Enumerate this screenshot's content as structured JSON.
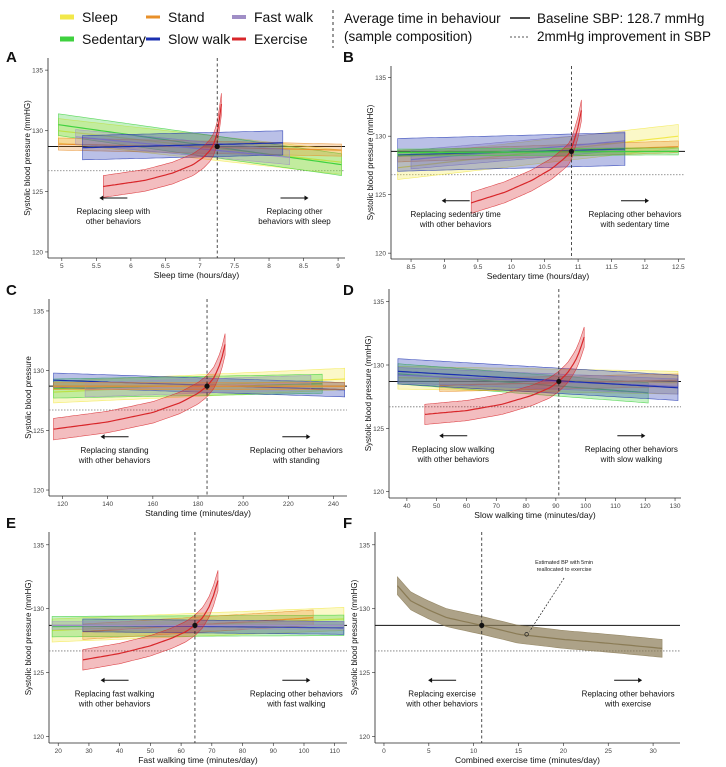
{
  "legend": {
    "behaviours": [
      {
        "label": "Sleep",
        "color": "#f2e84a"
      },
      {
        "label": "Stand",
        "color": "#e8902a"
      },
      {
        "label": "Fast walk",
        "color": "#a08ec6"
      },
      {
        "label": "Sedentary",
        "color": "#3fd13f"
      },
      {
        "label": "Slow walk",
        "color": "#1a2fb0"
      },
      {
        "label": "Exercise",
        "color": "#d8262a"
      }
    ],
    "avg_line_label_1": "Average time in behaviour",
    "avg_line_label_2": "(sample composition)",
    "baseline_label": "Baseline SBP: 128.7 mmHg",
    "improvement_label": "2mmHg improvement in SBP"
  },
  "colors": {
    "sleep": "#f2e84a",
    "stand": "#e8902a",
    "fastwalk": "#a08ec6",
    "sedentary": "#3fd13f",
    "slowwalk": "#1a2fb0",
    "exercise": "#d8262a",
    "combined": "#8a7b55"
  },
  "chart_data": [
    {
      "id": "A",
      "type": "line",
      "ylabel": "Systolic blood pressure (mmHG)",
      "xlabel": "Sleep time (hours/day)",
      "xlim": [
        4.8,
        9.1
      ],
      "ylim": [
        119.5,
        136
      ],
      "xticks": [
        5,
        5.5,
        6,
        6.5,
        7,
        7.5,
        8,
        8.5,
        9
      ],
      "yticks": [
        120,
        125,
        130,
        135
      ],
      "avg_x": 7.25,
      "baseline": 128.7,
      "improved": 126.7,
      "left_note": "Replacing sleep with|other behaviors",
      "right_note": "Replacing other|behaviors with sleep",
      "series": [
        {
          "name": "Sleep",
          "key": "sleep",
          "x": [
            4.95,
            9.05
          ],
          "y": [
            130.0,
            127.4
          ],
          "band": 1.0
        },
        {
          "name": "Sedentary",
          "key": "sedentary",
          "x": [
            4.95,
            9.05
          ],
          "y": [
            130.5,
            127.2
          ],
          "band": 0.9
        },
        {
          "name": "Stand",
          "key": "stand",
          "x": [
            4.95,
            9.05
          ],
          "y": [
            128.9,
            128.4
          ],
          "band": 0.5
        },
        {
          "name": "Fast walk",
          "key": "fastwalk",
          "x": [
            5.2,
            8.3
          ],
          "y": [
            129.5,
            127.8
          ],
          "band": 0.6
        },
        {
          "name": "Slow walk",
          "key": "slowwalk",
          "x": [
            5.3,
            8.2
          ],
          "y": [
            128.6,
            129.0
          ],
          "band": 1.0
        },
        {
          "name": "Exercise",
          "key": "exercise",
          "x": [
            5.6,
            6.2,
            6.6,
            6.9,
            7.05,
            7.15,
            7.2,
            7.25,
            7.28,
            7.31
          ],
          "y": [
            125.4,
            125.9,
            126.5,
            127.2,
            127.8,
            128.4,
            128.9,
            129.8,
            130.9,
            132.2
          ],
          "band": 0.9
        }
      ]
    },
    {
      "id": "B",
      "type": "line",
      "ylabel": "Systolic blood pressure (mmHG)",
      "xlabel": "Sedentary time (hours/day)",
      "xlim": [
        8.2,
        12.6
      ],
      "ylim": [
        119.5,
        136
      ],
      "xticks": [
        8.5,
        9,
        9.5,
        10,
        10.5,
        11,
        11.5,
        12,
        12.5
      ],
      "yticks": [
        120,
        125,
        130,
        135
      ],
      "avg_x": 10.9,
      "baseline": 128.7,
      "improved": 126.7,
      "left_note": "Replacing sedentary time|with other behaviors",
      "right_note": "Replacing other behaviors|with sedentary time",
      "series": [
        {
          "name": "Sleep",
          "key": "sleep",
          "x": [
            8.3,
            12.5
          ],
          "y": [
            127.3,
            130.0
          ],
          "band": 1.0
        },
        {
          "name": "Stand",
          "key": "stand",
          "x": [
            8.3,
            12.5
          ],
          "y": [
            128.3,
            129.1
          ],
          "band": 0.5
        },
        {
          "name": "Fast walk",
          "key": "fastwalk",
          "x": [
            8.5,
            11.7
          ],
          "y": [
            128.0,
            129.6
          ],
          "band": 0.8
        },
        {
          "name": "Slow walk",
          "key": "slowwalk",
          "x": [
            8.3,
            11.7
          ],
          "y": [
            128.4,
            128.9
          ],
          "band": 1.4
        },
        {
          "name": "Sedentary",
          "key": "sedentary",
          "x": [
            8.3,
            12.5
          ],
          "y": [
            128.6,
            128.7
          ],
          "band": 0.3
        },
        {
          "name": "Exercise",
          "key": "exercise",
          "x": [
            9.4,
            9.9,
            10.3,
            10.6,
            10.75,
            10.85,
            10.9,
            10.95,
            11.0,
            11.05
          ],
          "y": [
            124.3,
            125.2,
            126.2,
            127.2,
            127.9,
            128.4,
            128.9,
            129.8,
            130.8,
            132.2
          ],
          "band": 0.9
        }
      ]
    },
    {
      "id": "C",
      "type": "line",
      "ylabel": "Systolic blood pressure",
      "xlabel": "Standing time (minutes/day)",
      "xlim": [
        114,
        246
      ],
      "ylim": [
        119.5,
        136
      ],
      "xticks": [
        120,
        140,
        160,
        180,
        200,
        220,
        240
      ],
      "yticks": [
        120,
        125,
        130,
        135
      ],
      "avg_x": 184,
      "baseline": 128.7,
      "improved": 126.7,
      "left_note": "Replacing standing|with other behaviors",
      "right_note": "Replacing other behaviors|with standing",
      "series": [
        {
          "name": "Sleep",
          "key": "sleep",
          "x": [
            116,
            245
          ],
          "y": [
            128.2,
            129.3
          ],
          "band": 0.9
        },
        {
          "name": "Sedentary",
          "key": "sedentary",
          "x": [
            116,
            235
          ],
          "y": [
            128.5,
            128.9
          ],
          "band": 0.8
        },
        {
          "name": "Slow walk",
          "key": "slowwalk",
          "x": [
            116,
            245
          ],
          "y": [
            129.2,
            128.4
          ],
          "band": 0.6
        },
        {
          "name": "Fast walk",
          "key": "fastwalk",
          "x": [
            130,
            230
          ],
          "y": [
            128.4,
            129.0
          ],
          "band": 0.6
        },
        {
          "name": "Stand",
          "key": "stand",
          "x": [
            116,
            245
          ],
          "y": [
            128.7,
            128.7
          ],
          "band": 0.3
        },
        {
          "name": "Exercise",
          "key": "exercise",
          "x": [
            116,
            140,
            160,
            172,
            180,
            184,
            187,
            189,
            190.5,
            192
          ],
          "y": [
            125.1,
            125.7,
            126.5,
            127.3,
            128.1,
            128.7,
            129.4,
            130.2,
            131.0,
            132.2
          ],
          "band": 0.9
        }
      ]
    },
    {
      "id": "D",
      "type": "line",
      "ylabel": "Systolic blood pressure (mmHG)",
      "xlabel": "Slow walking time (minutes/day)",
      "xlim": [
        34,
        132
      ],
      "ylim": [
        119.5,
        136
      ],
      "xticks": [
        40,
        50,
        60,
        70,
        80,
        90,
        100,
        110,
        120,
        130
      ],
      "yticks": [
        120,
        125,
        130,
        135
      ],
      "avg_x": 91,
      "baseline": 128.7,
      "improved": 126.7,
      "left_note": "Replacing slow walking|with other behaviors",
      "right_note": "Replacing other behaviors|with slow walking",
      "series": [
        {
          "name": "Sleep",
          "key": "sleep",
          "x": [
            37,
            131
          ],
          "y": [
            129.0,
            128.6
          ],
          "band": 0.9
        },
        {
          "name": "Sedentary",
          "key": "sedentary",
          "x": [
            37,
            121
          ],
          "y": [
            129.3,
            127.8
          ],
          "band": 0.8
        },
        {
          "name": "Stand",
          "key": "stand",
          "x": [
            51,
            131
          ],
          "y": [
            128.4,
            128.8
          ],
          "band": 0.5
        },
        {
          "name": "Fast walk",
          "key": "fastwalk",
          "x": [
            37,
            131
          ],
          "y": [
            129.2,
            128.3
          ],
          "band": 0.6
        },
        {
          "name": "Slow walk",
          "key": "slowwalk",
          "x": [
            37,
            131
          ],
          "y": [
            129.5,
            128.2
          ],
          "band": 1.0
        },
        {
          "name": "Exercise",
          "key": "exercise",
          "x": [
            46,
            60,
            72,
            82,
            88,
            91,
            94,
            96.5,
            98,
            99.5
          ],
          "y": [
            126.1,
            126.4,
            126.9,
            127.6,
            128.2,
            128.7,
            129.4,
            130.3,
            131.1,
            132.2
          ],
          "band": 0.8
        }
      ]
    },
    {
      "id": "E",
      "type": "line",
      "ylabel": "Systolic blood pressure (mmHG)",
      "xlabel": "Fast walking time (minutes/day)",
      "xlim": [
        17,
        114
      ],
      "ylim": [
        119.5,
        136
      ],
      "xticks": [
        20,
        30,
        40,
        50,
        60,
        70,
        80,
        90,
        100,
        110
      ],
      "yticks": [
        120,
        125,
        130,
        135
      ],
      "avg_x": 64.5,
      "baseline": 128.7,
      "improved": 126.7,
      "left_note": "Replacing fast walking|with other behaviors",
      "right_note": "Replacing other behaviors|with fast walking",
      "series": [
        {
          "name": "Sleep",
          "key": "sleep",
          "x": [
            18,
            113
          ],
          "y": [
            128.3,
            129.2
          ],
          "band": 0.9
        },
        {
          "name": "Sedentary",
          "key": "sedentary",
          "x": [
            18,
            113
          ],
          "y": [
            128.6,
            128.7
          ],
          "band": 0.8
        },
        {
          "name": "Stand",
          "key": "stand",
          "x": [
            28,
            103
          ],
          "y": [
            128.2,
            129.3
          ],
          "band": 0.6
        },
        {
          "name": "Slow walk",
          "key": "slowwalk",
          "x": [
            28,
            113
          ],
          "y": [
            128.7,
            128.5
          ],
          "band": 0.5
        },
        {
          "name": "Fast walk",
          "key": "fastwalk",
          "x": [
            18,
            113
          ],
          "y": [
            128.7,
            128.7
          ],
          "band": 0.3
        },
        {
          "name": "Exercise",
          "key": "exercise",
          "x": [
            28,
            40,
            50,
            57,
            61.5,
            64.5,
            67,
            69,
            70.5,
            72
          ],
          "y": [
            126.0,
            126.5,
            127.1,
            127.7,
            128.2,
            128.7,
            129.3,
            130.1,
            131.0,
            132.2
          ],
          "band": 0.8
        }
      ]
    },
    {
      "id": "F",
      "type": "line",
      "ylabel": "Systolic blood pressure (mmHG)",
      "xlabel": "Combined exercise time (minutes/day)",
      "xlim": [
        -1,
        33
      ],
      "ylim": [
        119.5,
        136
      ],
      "xticks": [
        0,
        5,
        10,
        15,
        20,
        25,
        30
      ],
      "yticks": [
        120,
        125,
        130,
        135
      ],
      "avg_x": 10.9,
      "baseline": 128.7,
      "improved": 126.7,
      "left_note": "Replacing exercise|with other behaviors",
      "right_note": "Replacing other behaviors|with exercise",
      "annotation": "Estimated BP with 5min|reallocated to exercise",
      "annotation_point": [
        15.9,
        128.0
      ],
      "series": [
        {
          "name": "Combined exercise",
          "key": "combined",
          "x": [
            1.5,
            3,
            5,
            7,
            10.9,
            15,
            20,
            25,
            31
          ],
          "y": [
            131.8,
            130.6,
            129.9,
            129.3,
            128.7,
            128.0,
            127.6,
            127.3,
            126.9
          ],
          "band": 0.7
        }
      ]
    }
  ]
}
